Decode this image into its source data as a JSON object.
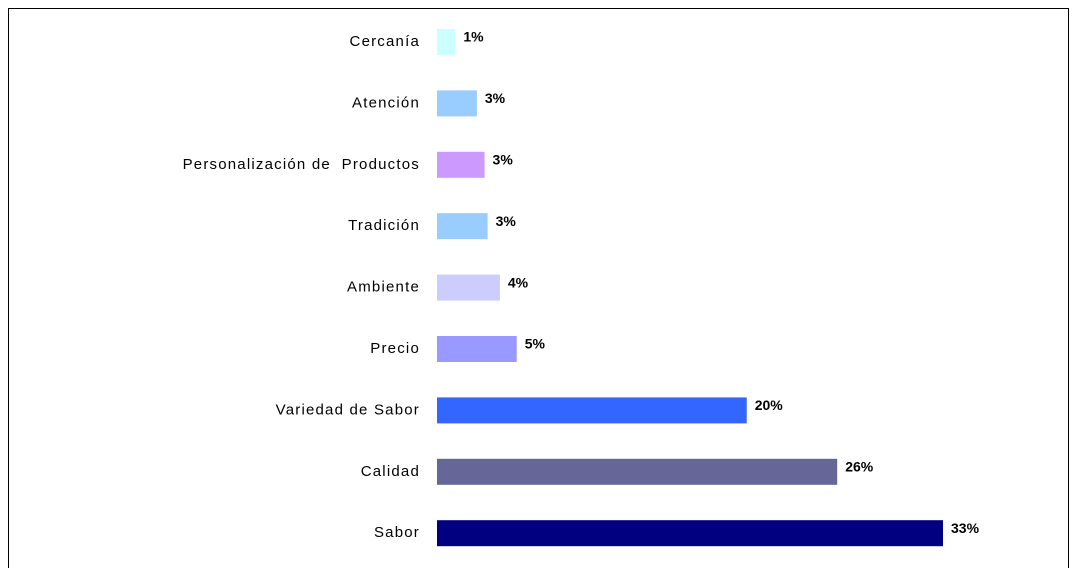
{
  "chart_data": {
    "type": "bar",
    "orientation": "horizontal",
    "categories": [
      "Cercanía",
      "Atención",
      "Personalización de  Productos",
      "Tradición",
      "Ambiente",
      "Precio",
      "Variedad de Sabor",
      "Calidad",
      "Sabor"
    ],
    "values": [
      1.2,
      2.6,
      3.1,
      3.3,
      4.1,
      5.2,
      20.2,
      26.1,
      33
    ],
    "value_labels": [
      "1%",
      "3%",
      "3%",
      "3%",
      "4%",
      "5%",
      "20%",
      "26%",
      "33%"
    ],
    "colors": [
      "#ccffff",
      "#99ccff",
      "#cc99ff",
      "#99ccff",
      "#ccccff",
      "#9999ff",
      "#3366ff",
      "#666699",
      "#000080"
    ]
  }
}
